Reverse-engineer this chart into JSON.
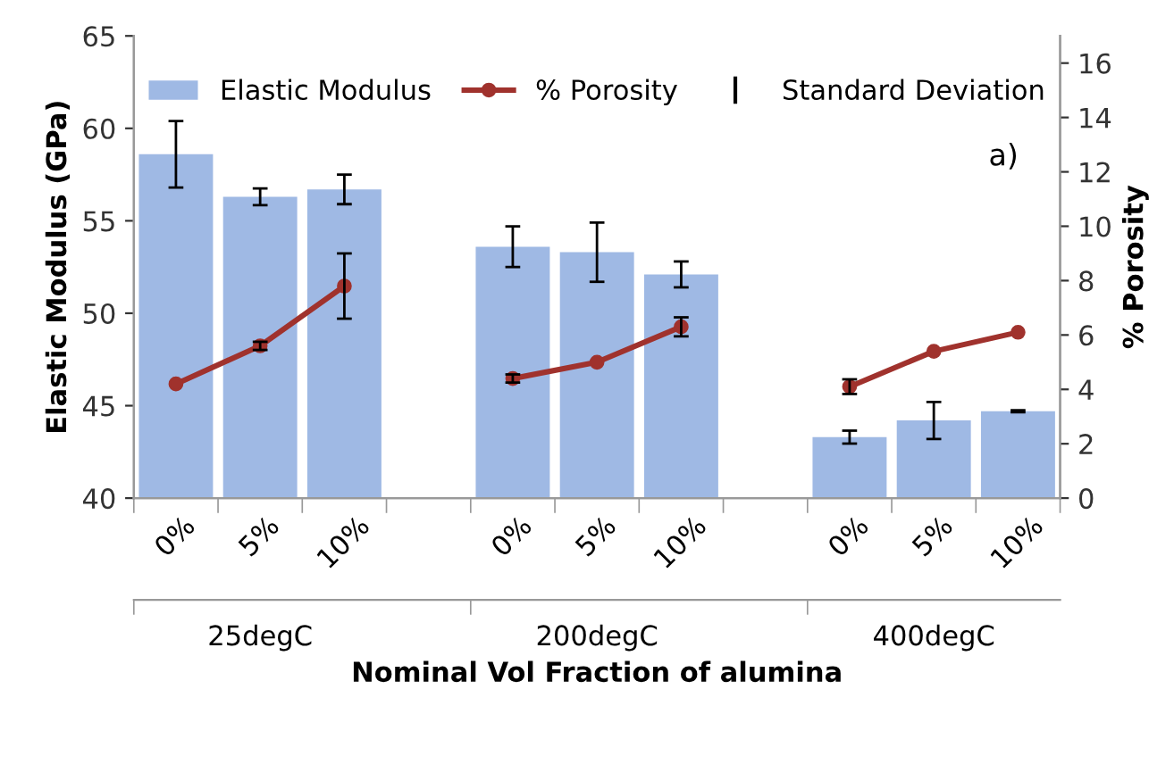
{
  "chart_data": {
    "type": "bar",
    "xlabel": "Nominal Vol Fraction of alumina",
    "ylabel": "Elastic Modulus (GPa)",
    "y2label": "% Porosity",
    "categories": [
      "0%",
      "5%",
      "10%",
      null,
      "0%",
      "5%",
      "10%",
      null,
      "0%",
      "5%",
      "10%"
    ],
    "series": [
      {
        "name": "Elastic Modulus",
        "color": "#9fb9e4",
        "values": [
          58.6,
          56.3,
          56.7,
          null,
          53.6,
          53.3,
          52.1,
          null,
          43.3,
          44.2,
          44.7
        ],
        "errors": [
          1.8,
          0.45,
          0.8,
          null,
          1.1,
          1.6,
          0.7,
          null,
          0.35,
          1.0,
          0.05
        ]
      },
      {
        "name": "% Porosity",
        "type": "line",
        "axis": "y2",
        "color": "#a0322d",
        "marker": "circle",
        "values": [
          4.2,
          5.6,
          7.8,
          null,
          4.4,
          5.0,
          6.3,
          null,
          4.1,
          5.4,
          6.1
        ],
        "errors": [
          null,
          0.15,
          1.2,
          null,
          0.15,
          null,
          0.35,
          null,
          0.27,
          null,
          null
        ]
      }
    ],
    "ylim": [
      40,
      65
    ],
    "yticks": [
      40,
      45,
      50,
      55,
      60,
      65
    ],
    "y2lim": [
      0,
      17
    ],
    "y2ticks": [
      0,
      2,
      4,
      6,
      8,
      10,
      12,
      14,
      16
    ],
    "annotations": [
      "a)",
      "Standard Deviation",
      "25degC",
      "200degC",
      "400degC"
    ],
    "grid": false,
    "legend": "top"
  }
}
